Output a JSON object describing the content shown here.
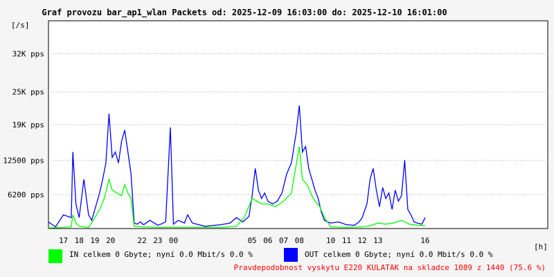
{
  "chart_data": {
    "type": "line",
    "title": "Graf provozu bar_ap1_wlan Packets od: 2025-12-09 16:03:00 do: 2025-12-10 16:01:00",
    "ylabel": "[/s]",
    "xlabel": "[h]",
    "x_ticks": [
      "17",
      "18",
      "19",
      "20",
      "22",
      "23",
      "00",
      "05",
      "06",
      "07",
      "08",
      "10",
      "11",
      "12",
      "13",
      "16"
    ],
    "x_ticks_hours": [
      17,
      18,
      19,
      20,
      22,
      23,
      24,
      29,
      30,
      31,
      32,
      34,
      35,
      36,
      37,
      40
    ],
    "y_ticks": [
      {
        "value": 6200,
        "label": "6200 pps"
      },
      {
        "value": 12500,
        "label": "12500 pps"
      },
      {
        "value": 19000,
        "label": "19K pps"
      },
      {
        "value": 25000,
        "label": "25K pps"
      },
      {
        "value": 32000,
        "label": "32K pps"
      }
    ],
    "ylim": [
      0,
      38000
    ],
    "xlim_hours": [
      16.05,
      47.8
    ],
    "grid": true,
    "series": [
      {
        "name": "OUT",
        "color": "#0000ff",
        "x": [
          16.05,
          16.5,
          17.0,
          17.5,
          17.6,
          17.8,
          18.0,
          18.3,
          18.6,
          18.8,
          19.1,
          19.3,
          19.5,
          19.7,
          19.9,
          20.1,
          20.3,
          20.5,
          20.7,
          20.9,
          21.1,
          21.3,
          21.5,
          21.7,
          21.9,
          22.1,
          22.5,
          23.0,
          23.2,
          23.5,
          23.8,
          24.0,
          24.3,
          24.7,
          24.8,
          24.9,
          25.2,
          26.0,
          27.0,
          27.6,
          28.0,
          28.4,
          28.8,
          29.0,
          29.2,
          29.4,
          29.6,
          29.8,
          30.0,
          30.3,
          30.6,
          30.9,
          31.2,
          31.5,
          31.8,
          32.0,
          32.2,
          32.4,
          32.6,
          32.8,
          33.0,
          33.2,
          33.4,
          33.6,
          33.8,
          34.0,
          34.5,
          35.0,
          35.5,
          35.8,
          36.0,
          36.3,
          36.5,
          36.7,
          36.9,
          37.1,
          37.3,
          37.5,
          37.7,
          37.9,
          38.1,
          38.3,
          38.5,
          38.7,
          38.9,
          39.1,
          39.3,
          39.5,
          39.8,
          40.0
        ],
        "values": [
          1200,
          300,
          2500,
          2000,
          14000,
          4500,
          2000,
          9000,
          2500,
          1500,
          4500,
          6500,
          9000,
          12000,
          21000,
          13000,
          14000,
          12000,
          16000,
          18000,
          14000,
          10000,
          1000,
          800,
          1200,
          700,
          1500,
          600,
          800,
          1200,
          18500,
          800,
          1500,
          1000,
          1800,
          2500,
          1000,
          400,
          700,
          1000,
          2000,
          1200,
          2200,
          6000,
          11000,
          7000,
          5500,
          6500,
          5000,
          4500,
          5000,
          6500,
          10000,
          12000,
          17500,
          22500,
          14000,
          15000,
          11000,
          9000,
          7000,
          5500,
          3000,
          1500,
          1200,
          1000,
          1200,
          700,
          600,
          1200,
          2000,
          4500,
          9000,
          11000,
          7000,
          4000,
          7500,
          5500,
          6500,
          3500,
          7000,
          5000,
          6000,
          12500,
          3500,
          2500,
          1200,
          1000,
          800,
          2000
        ]
      },
      {
        "name": "IN",
        "color": "#00ff00",
        "x": [
          16.05,
          17.0,
          17.5,
          17.6,
          17.8,
          18.0,
          18.6,
          19.0,
          19.3,
          19.6,
          19.9,
          20.1,
          20.4,
          20.7,
          20.9,
          21.1,
          21.3,
          21.5,
          22.0,
          23.0,
          24.0,
          25.0,
          27.0,
          28.0,
          28.5,
          29.0,
          29.3,
          29.6,
          30.0,
          30.5,
          31.0,
          31.5,
          32.0,
          32.2,
          32.5,
          32.8,
          33.0,
          33.3,
          33.6,
          34.0,
          35.0,
          36.0,
          36.5,
          37.0,
          37.5,
          38.0,
          38.5,
          39.0,
          39.5,
          40.0
        ],
        "values": [
          100,
          200,
          300,
          2500,
          1000,
          400,
          200,
          2000,
          3500,
          5500,
          9000,
          7000,
          6500,
          6000,
          8000,
          6500,
          5500,
          400,
          300,
          200,
          200,
          200,
          200,
          400,
          2000,
          5500,
          5000,
          4500,
          4500,
          4000,
          5000,
          6500,
          15000,
          9000,
          8000,
          6000,
          5000,
          4000,
          2000,
          300,
          200,
          300,
          500,
          1000,
          800,
          1000,
          1500,
          800,
          600,
          500
        ]
      }
    ]
  },
  "legend": {
    "in_label": "IN celkem 0 Gbyte; nyní   0.0 Mbit/s 0.0 %",
    "out_label": "OUT celkem 0 Gbyte; nyní   0.0 Mbit/s 0.0 %",
    "in_color": "#00ff00",
    "out_color": "#0000ff"
  },
  "footer_note": "Pravdepodobnost vyskytu E220 KULATAK na skladce 1089 z 1440 (75.6 %)",
  "colors": {
    "plot_background": "#ffffff",
    "grid": "#aaaaaa",
    "footer_text": "#ff0000"
  }
}
